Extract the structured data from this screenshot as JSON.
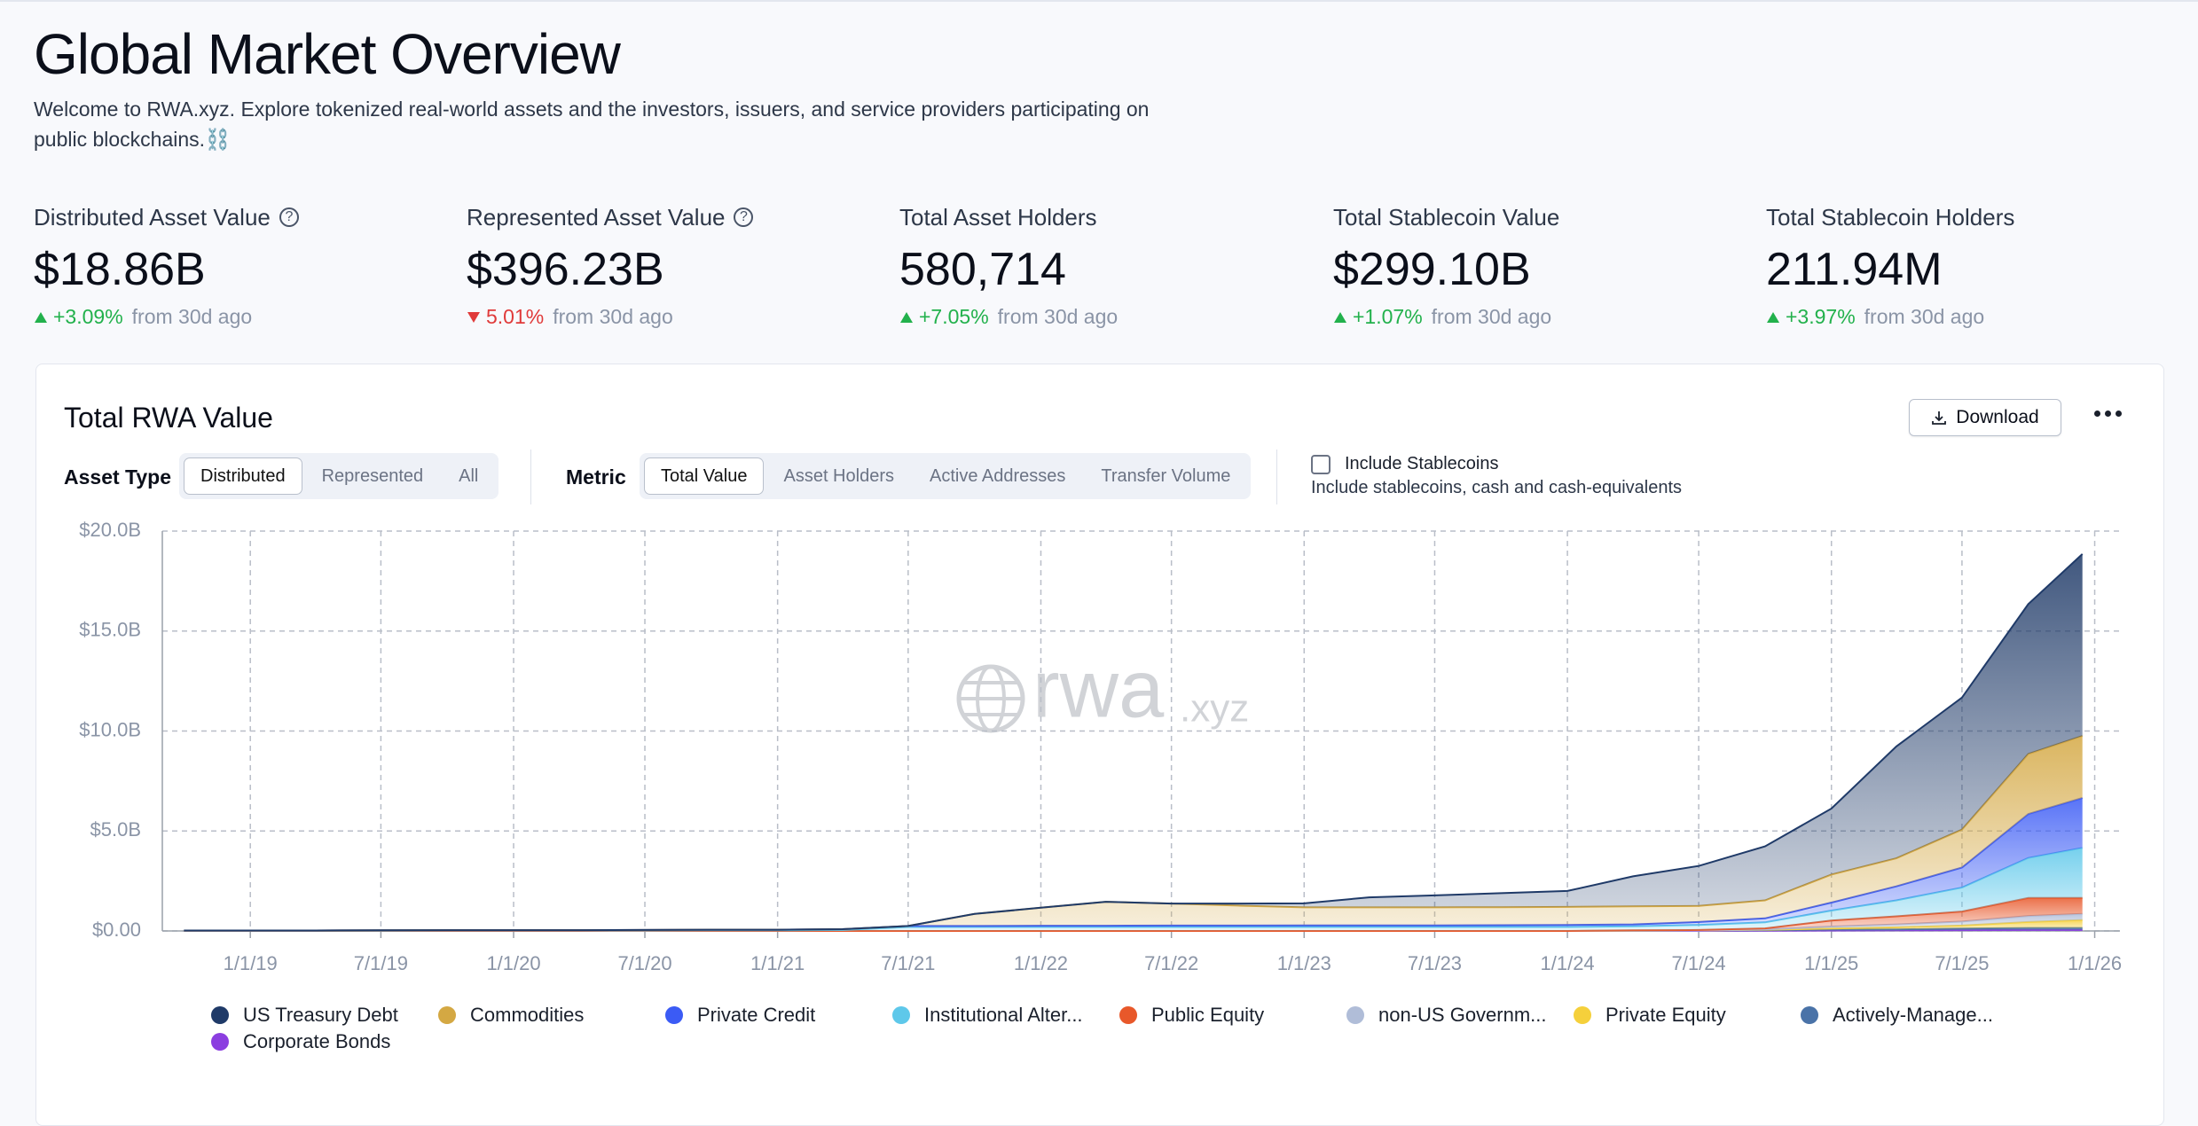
{
  "header": {
    "title": "Global Market Overview",
    "description": "Welcome to RWA.xyz. Explore tokenized real-world assets and the investors, issuers, and service providers participating on public blockchains.⛓️"
  },
  "stats": [
    {
      "label": "Distributed Asset Value",
      "value": "$18.86B",
      "change": "+3.09%",
      "comparison": "from 30d ago",
      "trend": "up",
      "help": true
    },
    {
      "label": "Represented Asset Value",
      "value": "$396.23B",
      "change": "5.01%",
      "comparison": "from 30d ago",
      "trend": "down",
      "help": true
    },
    {
      "label": "Total Asset Holders",
      "value": "580,714",
      "change": "+7.05%",
      "comparison": "from 30d ago",
      "trend": "up",
      "help": false
    },
    {
      "label": "Total Stablecoin Value",
      "value": "$299.10B",
      "change": "+1.07%",
      "comparison": "from 30d ago",
      "trend": "up",
      "help": false
    },
    {
      "label": "Total Stablecoin Holders",
      "value": "211.94M",
      "change": "+3.97%",
      "comparison": "from 30d ago",
      "trend": "up",
      "help": false
    }
  ],
  "card": {
    "title": "Total RWA Value",
    "download": "Download",
    "asset_type_label": "Asset Type",
    "asset_type_options": [
      {
        "label": "Distributed",
        "selected": true
      },
      {
        "label": "Represented",
        "selected": false
      },
      {
        "label": "All",
        "selected": false
      }
    ],
    "metric_label": "Metric",
    "metric_options": [
      {
        "label": "Total Value",
        "selected": true
      },
      {
        "label": "Asset Holders",
        "selected": false
      },
      {
        "label": "Active Addresses",
        "selected": false
      },
      {
        "label": "Transfer Volume",
        "selected": false
      }
    ],
    "checkbox_label": "Include Stablecoins",
    "checkbox_checked": false,
    "checkbox_description": "Include stablecoins, cash and cash-equivalents",
    "watermark_main": "rwa",
    "watermark_sub": ".xyz"
  },
  "chart_data": {
    "type": "area",
    "stacked": true,
    "grid": true,
    "legend": "bottom",
    "x": [
      "10/1/18",
      "1/1/19",
      "4/1/19",
      "7/1/19",
      "10/1/19",
      "1/1/20",
      "4/1/20",
      "7/1/20",
      "10/1/20",
      "1/1/21",
      "4/1/21",
      "7/1/21",
      "10/1/21",
      "1/1/22",
      "4/1/22",
      "7/1/22",
      "10/1/22",
      "1/1/23",
      "4/1/23",
      "7/1/23",
      "10/1/23",
      "1/1/24",
      "4/1/24",
      "7/1/24",
      "10/1/24",
      "1/1/25",
      "4/1/25",
      "7/1/25",
      "10/1/25",
      "12/15/25"
    ],
    "xlim": [
      "9/1/18",
      "2/5/26"
    ],
    "xticks": [
      "1/1/19",
      "7/1/19",
      "1/1/20",
      "7/1/20",
      "1/1/21",
      "7/1/21",
      "1/1/22",
      "7/1/22",
      "1/1/23",
      "7/1/23",
      "1/1/24",
      "7/1/24",
      "1/1/25",
      "7/1/25",
      "1/1/26"
    ],
    "ylim": [
      0,
      20
    ],
    "yticks": [
      {
        "value": 0,
        "label": "$0.00"
      },
      {
        "value": 5,
        "label": "$5.0B"
      },
      {
        "value": 10,
        "label": "$10.0B"
      },
      {
        "value": 15,
        "label": "$15.0B"
      },
      {
        "value": 20,
        "label": "$20.0B"
      }
    ],
    "series": [
      {
        "name": "US Treasury Debt",
        "color": "#1f3a68",
        "values": [
          0,
          0,
          0,
          0,
          0,
          0,
          0,
          0,
          0,
          0,
          0,
          0,
          0,
          0,
          0,
          0,
          0.1,
          0.2,
          0.5,
          0.6,
          0.7,
          0.8,
          1.5,
          2.0,
          2.7,
          3.3,
          5.6,
          6.6,
          7.5,
          9.1
        ]
      },
      {
        "name": "Commodities",
        "color": "#d4a843",
        "values": [
          0,
          0,
          0,
          0,
          0,
          0,
          0,
          0,
          0,
          0,
          0,
          0,
          0.6,
          0.9,
          1.2,
          1.1,
          1.0,
          0.9,
          0.9,
          0.9,
          0.9,
          0.9,
          0.9,
          0.8,
          0.9,
          1.4,
          1.4,
          1.9,
          3.0,
          3.1
        ]
      },
      {
        "name": "Private Credit",
        "color": "#3b5bf5",
        "values": [
          0.01,
          0.01,
          0.01,
          0.02,
          0.02,
          0.02,
          0.02,
          0.03,
          0.03,
          0.03,
          0.04,
          0.05,
          0.05,
          0.06,
          0.06,
          0.07,
          0.07,
          0.08,
          0.08,
          0.08,
          0.09,
          0.1,
          0.1,
          0.15,
          0.2,
          0.4,
          0.7,
          1.0,
          2.2,
          2.5
        ]
      },
      {
        "name": "Institutional Alter...",
        "color": "#5ec8ea",
        "values": [
          0.01,
          0.01,
          0.01,
          0.01,
          0.02,
          0.02,
          0.02,
          0.02,
          0.03,
          0.03,
          0.05,
          0.2,
          0.2,
          0.2,
          0.2,
          0.2,
          0.2,
          0.2,
          0.2,
          0.2,
          0.2,
          0.2,
          0.2,
          0.25,
          0.3,
          0.5,
          0.8,
          1.2,
          2.0,
          2.5
        ]
      },
      {
        "name": "Public Equity",
        "color": "#e8582a",
        "values": [
          0,
          0,
          0,
          0,
          0,
          0,
          0,
          0,
          0,
          0,
          0,
          0,
          0,
          0,
          0,
          0,
          0,
          0,
          0,
          0,
          0,
          0,
          0.02,
          0.03,
          0.05,
          0.3,
          0.4,
          0.5,
          0.9,
          0.8
        ]
      },
      {
        "name": "non-US Governm...",
        "color": "#b0bdd8",
        "values": [
          0,
          0,
          0,
          0,
          0,
          0,
          0,
          0,
          0,
          0,
          0,
          0,
          0,
          0,
          0,
          0,
          0,
          0,
          0,
          0,
          0,
          0,
          0,
          0,
          0.02,
          0.1,
          0.15,
          0.2,
          0.3,
          0.3
        ]
      },
      {
        "name": "Private Equity",
        "color": "#f5d03b",
        "values": [
          0,
          0,
          0,
          0,
          0,
          0,
          0,
          0,
          0,
          0,
          0,
          0,
          0,
          0,
          0,
          0,
          0,
          0,
          0,
          0,
          0,
          0,
          0,
          0,
          0.02,
          0.05,
          0.1,
          0.15,
          0.3,
          0.4
        ]
      },
      {
        "name": "Actively-Manage...",
        "color": "#4a73a8",
        "values": [
          0,
          0,
          0,
          0,
          0,
          0,
          0,
          0,
          0,
          0,
          0,
          0,
          0,
          0,
          0,
          0,
          0,
          0,
          0,
          0,
          0,
          0,
          0.01,
          0.02,
          0.03,
          0.05,
          0.05,
          0.08,
          0.1,
          0.1
        ]
      },
      {
        "name": "Corporate Bonds",
        "color": "#8b3ee0",
        "values": [
          0,
          0,
          0,
          0,
          0,
          0,
          0,
          0,
          0,
          0,
          0,
          0,
          0,
          0,
          0,
          0,
          0,
          0,
          0,
          0,
          0,
          0,
          0,
          0,
          0.01,
          0.02,
          0.03,
          0.04,
          0.05,
          0.05
        ]
      }
    ]
  }
}
